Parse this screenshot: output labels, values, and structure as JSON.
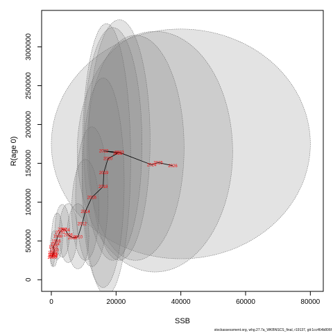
{
  "chart_data": {
    "type": "scatter",
    "title": "",
    "xlabel": "SSB",
    "ylabel": "R(age 0)",
    "xlim": [
      -3000,
      84000
    ],
    "ylim": [
      -150000,
      3470000
    ],
    "x_ticks": [
      0,
      20000,
      40000,
      60000,
      80000
    ],
    "x_tick_labels": [
      "0",
      "20000",
      "40000",
      "60000",
      "80000"
    ],
    "y_ticks": [
      0,
      500000,
      1000000,
      1500000,
      2000000,
      2500000,
      3000000
    ],
    "y_tick_labels": [
      "0",
      "500000",
      "1000000",
      "1500000",
      "2000000",
      "2500000",
      "3000000"
    ],
    "grid": false,
    "legend": "none",
    "point_label_color": "#ff0000",
    "trajectory_color": "#000000",
    "ellipse_fill": "#808080",
    "ellipse_stroke": "#6e6e6e",
    "points": [
      {
        "x": 200,
        "y": 290000,
        "label": "1980"
      },
      {
        "x": 300,
        "y": 320000,
        "label": "1982"
      },
      {
        "x": 500,
        "y": 300000,
        "label": "1984"
      },
      {
        "x": 400,
        "y": 350000,
        "label": "1986"
      },
      {
        "x": 700,
        "y": 330000,
        "label": "1988"
      },
      {
        "x": 900,
        "y": 380000,
        "label": "1990"
      },
      {
        "x": 600,
        "y": 420000,
        "label": "1992"
      },
      {
        "x": 1100,
        "y": 460000,
        "label": "1994"
      },
      {
        "x": 1500,
        "y": 500000,
        "label": "1996"
      },
      {
        "x": 2000,
        "y": 560000,
        "label": "1998"
      },
      {
        "x": 2600,
        "y": 610000,
        "label": "2000"
      },
      {
        "x": 3400,
        "y": 650000,
        "label": "2002"
      },
      {
        "x": 4300,
        "y": 640000,
        "label": "2004"
      },
      {
        "x": 5200,
        "y": 580000,
        "label": "2006"
      },
      {
        "x": 6500,
        "y": 540000,
        "label": "2008"
      },
      {
        "x": 8200,
        "y": 550000,
        "label": "2010"
      },
      {
        "x": 9500,
        "y": 720000,
        "label": "2012"
      },
      {
        "x": 10500,
        "y": 880000,
        "label": "2014"
      },
      {
        "x": 12500,
        "y": 1060000,
        "label": "2016"
      },
      {
        "x": 16000,
        "y": 1200000,
        "label": "2018"
      },
      {
        "x": 16200,
        "y": 1380000,
        "label": "2019"
      },
      {
        "x": 17500,
        "y": 1560000,
        "label": "2020"
      },
      {
        "x": 20500,
        "y": 1630000,
        "label": "2021"
      },
      {
        "x": 16200,
        "y": 1660000,
        "label": "2022"
      },
      {
        "x": 21000,
        "y": 1640000,
        "label": "2023"
      },
      {
        "x": 31000,
        "y": 1480000,
        "label": "2024"
      },
      {
        "x": 33000,
        "y": 1510000,
        "label": "2025"
      },
      {
        "x": 37500,
        "y": 1470000,
        "label": "2026"
      }
    ],
    "ellipses": [
      {
        "cx": 300,
        "cy": 320000,
        "rx": 700,
        "ry": 150000
      },
      {
        "cx": 800,
        "cy": 400000,
        "rx": 1200,
        "ry": 230000
      },
      {
        "cx": 1800,
        "cy": 560000,
        "rx": 1700,
        "ry": 300000
      },
      {
        "cx": 3400,
        "cy": 630000,
        "rx": 2300,
        "ry": 340000
      },
      {
        "cx": 5200,
        "cy": 600000,
        "rx": 2800,
        "ry": 380000
      },
      {
        "cx": 8200,
        "cy": 560000,
        "rx": 3400,
        "ry": 420000
      },
      {
        "cx": 10500,
        "cy": 900000,
        "rx": 4200,
        "ry": 650000
      },
      {
        "cx": 12500,
        "cy": 1070000,
        "rx": 5000,
        "ry": 900000
      },
      {
        "cx": 16000,
        "cy": 1250000,
        "rx": 6500,
        "ry": 1350000
      },
      {
        "cx": 17000,
        "cy": 1550000,
        "rx": 7500,
        "ry": 1750000
      },
      {
        "cx": 19000,
        "cy": 1750000,
        "rx": 9000,
        "ry": 1500000
      },
      {
        "cx": 21000,
        "cy": 1800000,
        "rx": 9500,
        "ry": 1550000
      },
      {
        "cx": 26000,
        "cy": 1700000,
        "rx": 15000,
        "ry": 1450000
      },
      {
        "cx": 32000,
        "cy": 1650000,
        "rx": 24000,
        "ry": 1550000
      },
      {
        "cx": 40000,
        "cy": 1750000,
        "rx": 40000,
        "ry": 1480000
      }
    ]
  },
  "caption": "stockassessment.org, whg.27.7a_WKBNSCS_final, r19137, git:1cc464b806f"
}
